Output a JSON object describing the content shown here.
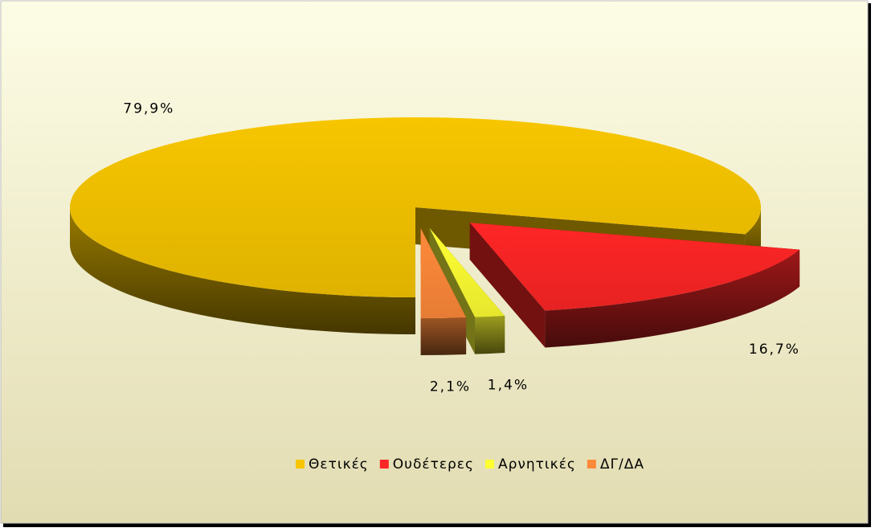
{
  "chart_data": {
    "type": "pie3d",
    "categories": [
      "Θετικές",
      "Ουδέτερες",
      "Αρνητικές",
      "ΔΓ/ΔΑ"
    ],
    "values": [
      79.9,
      16.7,
      1.4,
      2.1
    ],
    "value_labels": [
      "79,9%",
      "16,7%",
      "1,4%",
      "2,1%"
    ],
    "colors": [
      "#f7c600",
      "#ff2626",
      "#ffff33",
      "#ff8a3a"
    ],
    "legend": "bottom"
  }
}
